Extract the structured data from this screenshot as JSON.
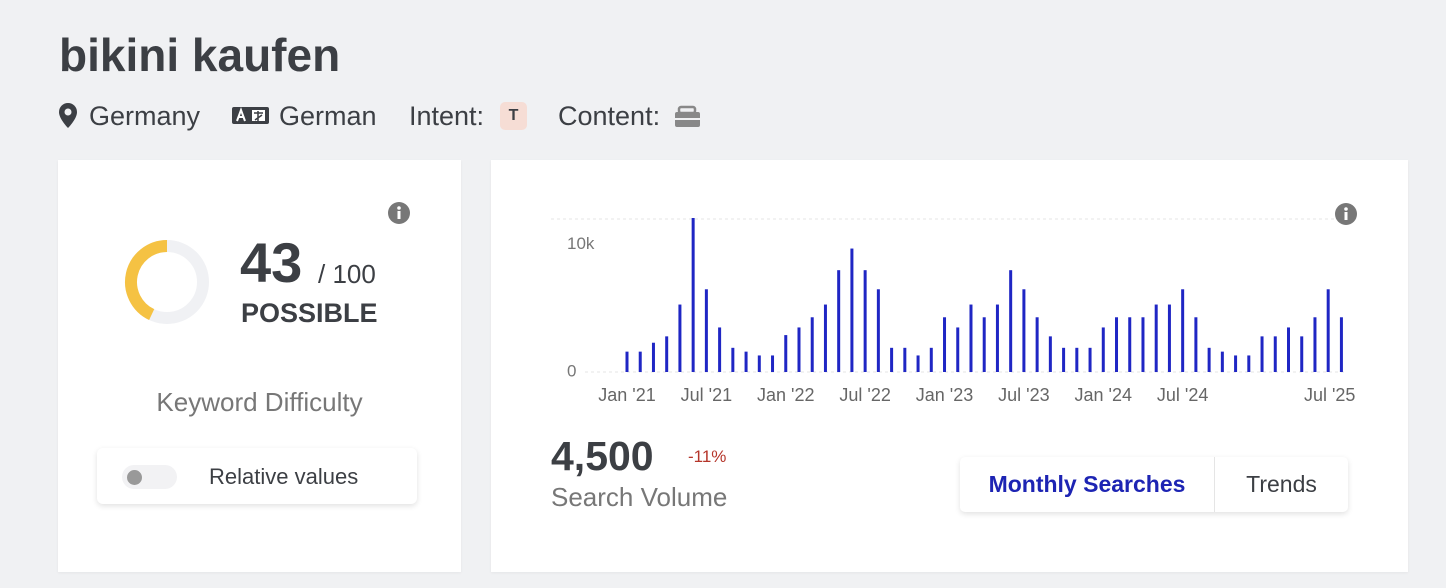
{
  "header": {
    "title": "bikini kaufen",
    "location": "Germany",
    "language": "German",
    "intent_label": "Intent:",
    "intent": "T",
    "content_label": "Content:"
  },
  "difficulty": {
    "score": 43,
    "max": 100,
    "max_label": "/ 100",
    "level": "POSSIBLE",
    "label": "Keyword Difficulty",
    "toggle": "Relative values"
  },
  "volume": {
    "value": "4,500",
    "change": "-11%",
    "label": "Search Volume",
    "tabs": [
      "Monthly Searches",
      "Trends"
    ]
  },
  "chart_data": {
    "type": "bar",
    "color": "#1f26c4",
    "categories": [
      "Jan '21",
      null,
      null,
      null,
      null,
      null,
      "Jul '21",
      null,
      null,
      null,
      null,
      null,
      "Jan '22",
      null,
      null,
      null,
      null,
      null,
      "Jul '22",
      null,
      null,
      null,
      null,
      null,
      "Jan '23",
      null,
      null,
      null,
      null,
      null,
      "Jul '23",
      null,
      null,
      null,
      null,
      null,
      "Jan '24",
      null,
      null,
      null,
      null,
      null,
      "Jul '24",
      null,
      null,
      null,
      null,
      null,
      null,
      null,
      null,
      null,
      null,
      null,
      "Jul '25"
    ],
    "values": [
      1600,
      1600,
      2300,
      2800,
      5300,
      12100,
      6500,
      3500,
      1900,
      1600,
      1300,
      1300,
      2900,
      3500,
      4300,
      5300,
      8000,
      9700,
      8000,
      6500,
      1900,
      1900,
      1300,
      1900,
      4300,
      3500,
      5300,
      4300,
      5300,
      8000,
      6500,
      4300,
      2800,
      1900,
      1900,
      1900,
      3500,
      4300,
      4300,
      4300,
      5300,
      5300,
      6500,
      4300,
      1900,
      1600,
      1300,
      1300,
      2800,
      2800,
      3500,
      2800,
      4300,
      6500,
      4300
    ],
    "ylim": [
      0,
      12100
    ],
    "yticks": [
      0,
      {
        "value": 10000,
        "label": "10k"
      }
    ],
    "grid": true
  }
}
